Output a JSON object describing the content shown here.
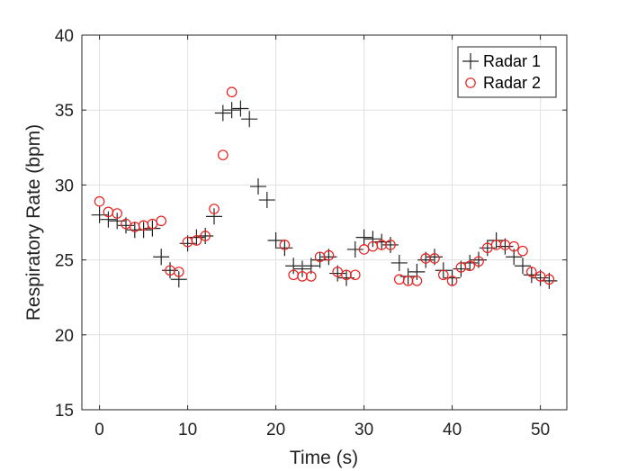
{
  "chart_data": {
    "type": "scatter",
    "title": "",
    "xlabel": "Time (s)",
    "ylabel": "Respiratory Rate (bpm)",
    "xlim": [
      -2,
      53
    ],
    "ylim": [
      15,
      40
    ],
    "xticks": [
      0,
      10,
      20,
      30,
      40,
      50
    ],
    "yticks": [
      15,
      20,
      25,
      30,
      35,
      40
    ],
    "grid": true,
    "legend_position": "top-right",
    "series": [
      {
        "name": "Radar 1",
        "marker": "plus",
        "color": "#222222",
        "x": [
          0,
          1,
          2,
          3,
          4,
          5,
          6,
          7,
          8,
          9,
          10,
          11,
          12,
          13,
          14,
          15,
          16,
          17,
          18,
          19,
          20,
          21,
          22,
          23,
          24,
          25,
          26,
          27,
          28,
          29,
          30,
          31,
          32,
          33,
          34,
          35,
          36,
          37,
          38,
          39,
          40,
          41,
          42,
          43,
          44,
          45,
          46,
          47,
          48,
          49,
          50,
          51
        ],
        "y": [
          28.0,
          27.7,
          27.6,
          27.3,
          27.0,
          27.0,
          27.1,
          25.2,
          24.3,
          23.7,
          26.1,
          26.5,
          26.6,
          27.9,
          34.8,
          35.0,
          35.1,
          34.4,
          29.9,
          29.0,
          26.3,
          25.8,
          24.6,
          24.4,
          24.6,
          25.0,
          25.2,
          24.1,
          23.8,
          25.7,
          26.5,
          26.4,
          26.2,
          26.0,
          24.8,
          23.9,
          24.2,
          25.0,
          25.2,
          24.3,
          23.8,
          24.4,
          24.8,
          25.0,
          25.8,
          26.3,
          25.9,
          25.2,
          24.6,
          24.0,
          23.8,
          23.6
        ]
      },
      {
        "name": "Radar 2",
        "marker": "circle",
        "color": "#e8201e",
        "x": [
          0,
          1,
          2,
          3,
          4,
          5,
          6,
          7,
          8,
          9,
          10,
          11,
          12,
          13,
          14,
          15,
          16,
          17,
          18,
          19,
          20,
          21,
          22,
          23,
          24,
          25,
          26,
          27,
          28,
          29,
          30,
          31,
          32,
          33,
          34,
          35,
          36,
          37,
          38,
          39,
          40,
          41,
          42,
          43,
          44,
          45,
          46,
          47,
          48,
          49,
          50,
          51
        ],
        "y": [
          28.9,
          28.2,
          28.1,
          27.4,
          27.2,
          27.3,
          27.4,
          27.6,
          24.3,
          24.2,
          26.2,
          26.3,
          26.6,
          28.4,
          32.0,
          36.2,
          null,
          null,
          null,
          null,
          null,
          26.0,
          24.0,
          23.9,
          23.9,
          25.2,
          25.3,
          24.2,
          24.0,
          24.0,
          25.7,
          25.9,
          26.0,
          26.0,
          23.7,
          23.6,
          23.6,
          25.1,
          25.1,
          24.0,
          23.6,
          24.5,
          24.6,
          24.9,
          25.8,
          26.0,
          26.0,
          25.9,
          25.6,
          24.2,
          23.9,
          23.7
        ]
      }
    ]
  }
}
